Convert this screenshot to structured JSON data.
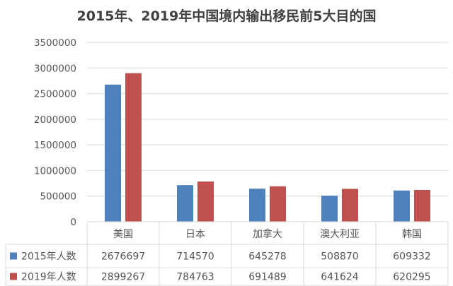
{
  "chart_data": {
    "type": "bar",
    "title": "2015年、2019年中国境内输出移民前5大目的国",
    "categories": [
      "美国",
      "日本",
      "加拿大",
      "澳大利亚",
      "韩国"
    ],
    "series": [
      {
        "name": "2015年人数",
        "color": "#4F81BD",
        "values": [
          2676697,
          714570,
          645278,
          508870,
          609332
        ]
      },
      {
        "name": "2019年人数",
        "color": "#C0504D",
        "values": [
          2899267,
          784763,
          691489,
          641624,
          620295
        ]
      }
    ],
    "ylim": [
      0,
      3500000
    ],
    "yticks": [
      "0",
      "500000",
      "1000000",
      "1500000",
      "2000000",
      "2500000",
      "3000000",
      "3500000"
    ],
    "grid": true,
    "legend": "data-table-bottom"
  }
}
